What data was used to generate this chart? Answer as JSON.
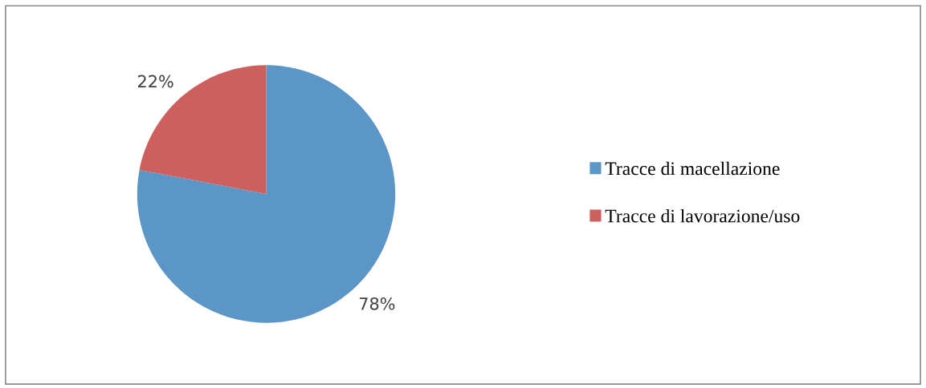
{
  "chart_data": {
    "type": "pie",
    "categories": [
      "Tracce di macellazione",
      "Tracce di lavorazione/uso"
    ],
    "values": [
      78,
      22
    ],
    "colors": [
      "#5b96c6",
      "#cd605e"
    ],
    "value_labels": [
      "78%",
      "22%"
    ],
    "legend": "right"
  }
}
